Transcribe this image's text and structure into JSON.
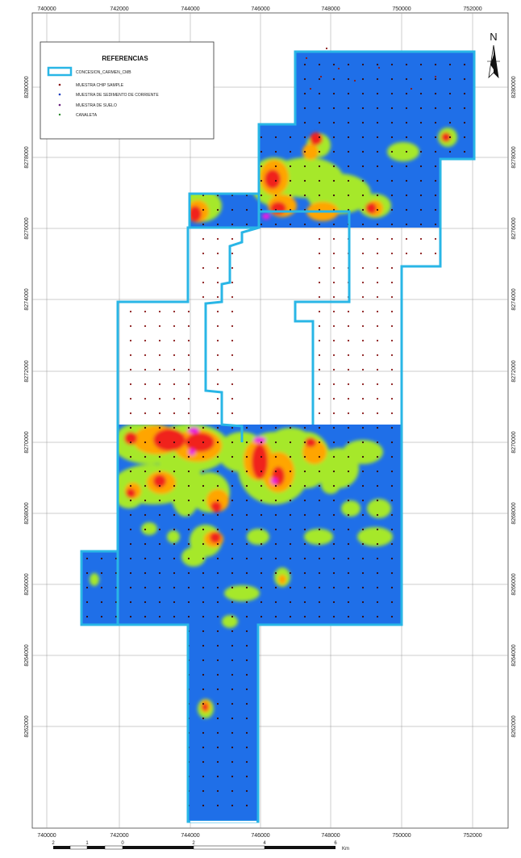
{
  "map": {
    "x_ticks": [
      "740000",
      "742000",
      "744000",
      "746000",
      "748000",
      "750000",
      "752000"
    ],
    "y_ticks": [
      "8280000",
      "8278000",
      "8276000",
      "8274000",
      "8272000",
      "8270000",
      "8268000",
      "8266000",
      "8264000",
      "8262000"
    ],
    "north_label": "N",
    "legend": {
      "title": "REFERENCIAS",
      "items": [
        {
          "label": "CONCESION_CARMEN_CMB",
          "kind": "box",
          "color": "#29b6e6"
        },
        {
          "label": "MUESTRA CHIP SAMPLE",
          "kind": "dot",
          "color": "#8b1a1a"
        },
        {
          "label": "MUESTRA DE SEDIMENTO DE CORRIENTE",
          "kind": "dot",
          "color": "#1f3fbf"
        },
        {
          "label": "MUESTRA DE SUELO",
          "kind": "dot",
          "color": "#6a2080"
        },
        {
          "label": "CANALETA",
          "kind": "dot",
          "color": "#2a8a2a"
        }
      ]
    },
    "scale": {
      "labels": [
        "2",
        "1",
        "0",
        "2",
        "4",
        "6"
      ],
      "unit": "Km"
    },
    "colors": {
      "background_fill": "#1f6fe8",
      "low": "#a6e82a",
      "mid": "#ffa500",
      "high": "#f0221c",
      "peak": "#e81ae0",
      "boundary": "#29b6e6",
      "sample": "#5a0a0a"
    }
  }
}
